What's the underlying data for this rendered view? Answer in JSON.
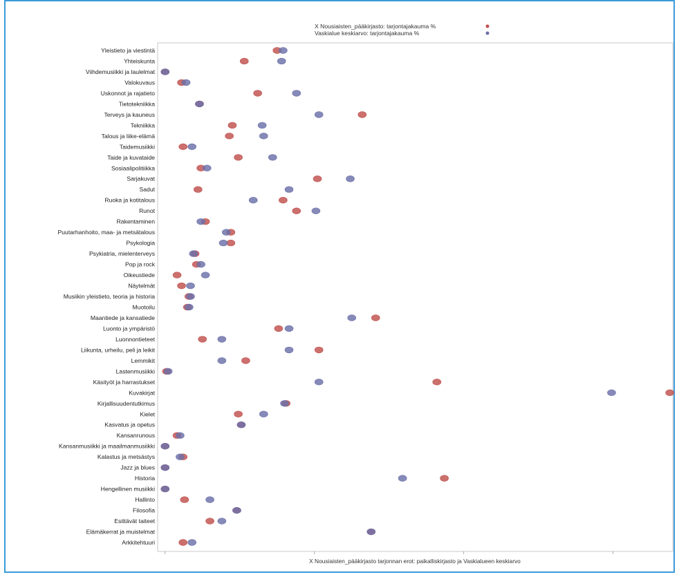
{
  "colors": {
    "frame": "#3a9ad9",
    "series_red": "#c0504d",
    "series_blue": "#6b70a8",
    "plot_border": "#bbbbbb",
    "tick": "#999999"
  },
  "chart_data": {
    "type": "scatter",
    "orientation": "horizontal",
    "xlabel": "X Nousiaisten_pääkirjasto tarjonnan erot: paikalliskirjasto ja Vaskialueen keskiarvo",
    "ylabel": "",
    "xlim": [
      -0.5,
      34
    ],
    "x_ticks": [
      0,
      10,
      20,
      30
    ],
    "grid": false,
    "legend_position": "top-center",
    "categories": [
      "Yleistieto ja viestintä",
      "Yhteiskunta",
      "Viihdemusiikki ja laulelmat",
      "Valokuvaus",
      "Uskonnot ja rajatieto",
      "Tietotekniikka",
      "Terveys ja kauneus",
      "Tekniikka",
      "Talous ja liike-elämä",
      "Taidemusiikki",
      "Taide ja kuvataide",
      "Sosiaalipolitiikka",
      "Sarjakuvat",
      "Sadut",
      "Ruoka ja kotitalous",
      "Runot",
      "Rakentaminen",
      "Puutarhanhoito, maa- ja metsätalous",
      "Psykologia",
      "Psykiatria, mielenterveys",
      "Pop ja rock",
      "Oikeustiede",
      "Näytelmät",
      "Musiikin yleistieto, teoria ja historia",
      "Muotoilu",
      "Maantiede ja kansatiede",
      "Luonto ja ympäristö",
      "Luonnontieteet",
      "Liikunta, urheilu, peli ja leikit",
      "Lemmikit",
      "Lastenmusiikki",
      "Käsityöt ja harrastukset",
      "Kuvakirjat",
      "Kirjallisuudentutkimus",
      "Kielet",
      "Kasvatus ja opetus",
      "Kansanrunous",
      "Kansanmusiikki ja maailmanmusiikki",
      "Kalastus ja metsästys",
      "Jazz ja blues",
      "Historia",
      "Hengellinen musiikki",
      "Hallinto",
      "Filosofia",
      "Esittävät taiteet",
      "Elämäkerrat ja muistelmat",
      "Arkkitehtuuri"
    ],
    "series": [
      {
        "name": "X Nousiaisten_pääkirjasto: tarjontajakauma %",
        "values": [
          7.5,
          5.3,
          0.0,
          1.1,
          6.2,
          2.3,
          13.2,
          4.5,
          4.3,
          1.2,
          4.9,
          2.4,
          10.2,
          2.2,
          7.9,
          8.8,
          2.7,
          4.4,
          4.4,
          2.0,
          2.1,
          0.8,
          1.1,
          1.6,
          1.5,
          14.1,
          7.6,
          2.5,
          10.3,
          5.4,
          0.1,
          18.2,
          33.8,
          8.1,
          4.9,
          5.1,
          0.8,
          0.0,
          1.2,
          0.0,
          18.7,
          0.0,
          1.3,
          4.8,
          3.0,
          13.8,
          1.2
        ],
        "color": "#c0504d"
      },
      {
        "name": "Vaskialue keskiarvo: tarjontajakauma %",
        "values": [
          7.9,
          7.8,
          0.0,
          1.4,
          8.8,
          2.3,
          10.3,
          6.5,
          6.6,
          1.8,
          7.2,
          2.8,
          12.4,
          8.3,
          5.9,
          10.1,
          2.4,
          4.1,
          3.9,
          1.9,
          2.4,
          2.7,
          1.7,
          1.7,
          1.6,
          12.5,
          8.3,
          3.8,
          8.3,
          3.8,
          0.2,
          10.3,
          29.9,
          8.0,
          6.6,
          5.1,
          1.0,
          0.0,
          1.0,
          0.0,
          15.9,
          0.0,
          3.0,
          4.8,
          3.8,
          13.8,
          1.8
        ],
        "color": "#6b70a8"
      }
    ]
  }
}
